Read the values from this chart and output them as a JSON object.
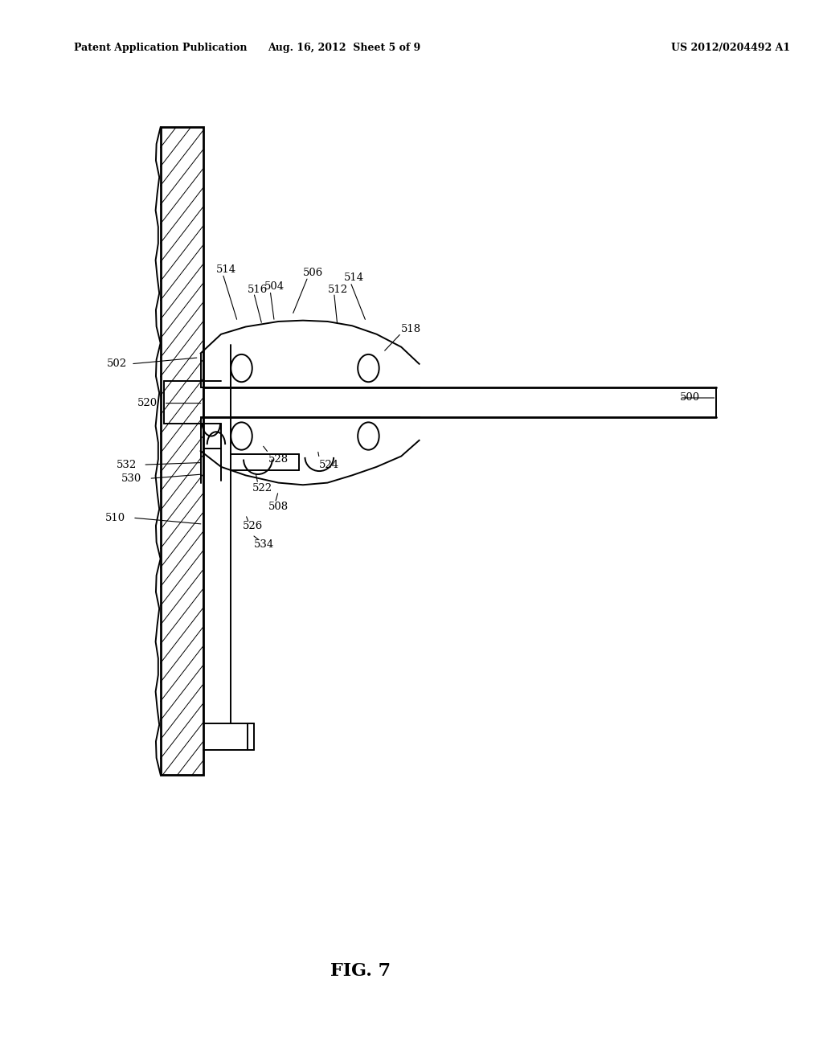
{
  "bg_color": "#ffffff",
  "line_color": "#000000",
  "header_left": "Patent Application Publication",
  "header_mid": "Aug. 16, 2012  Sheet 5 of 9",
  "header_right": "US 2012/0204492 A1",
  "fig_label": "FIG. 7"
}
